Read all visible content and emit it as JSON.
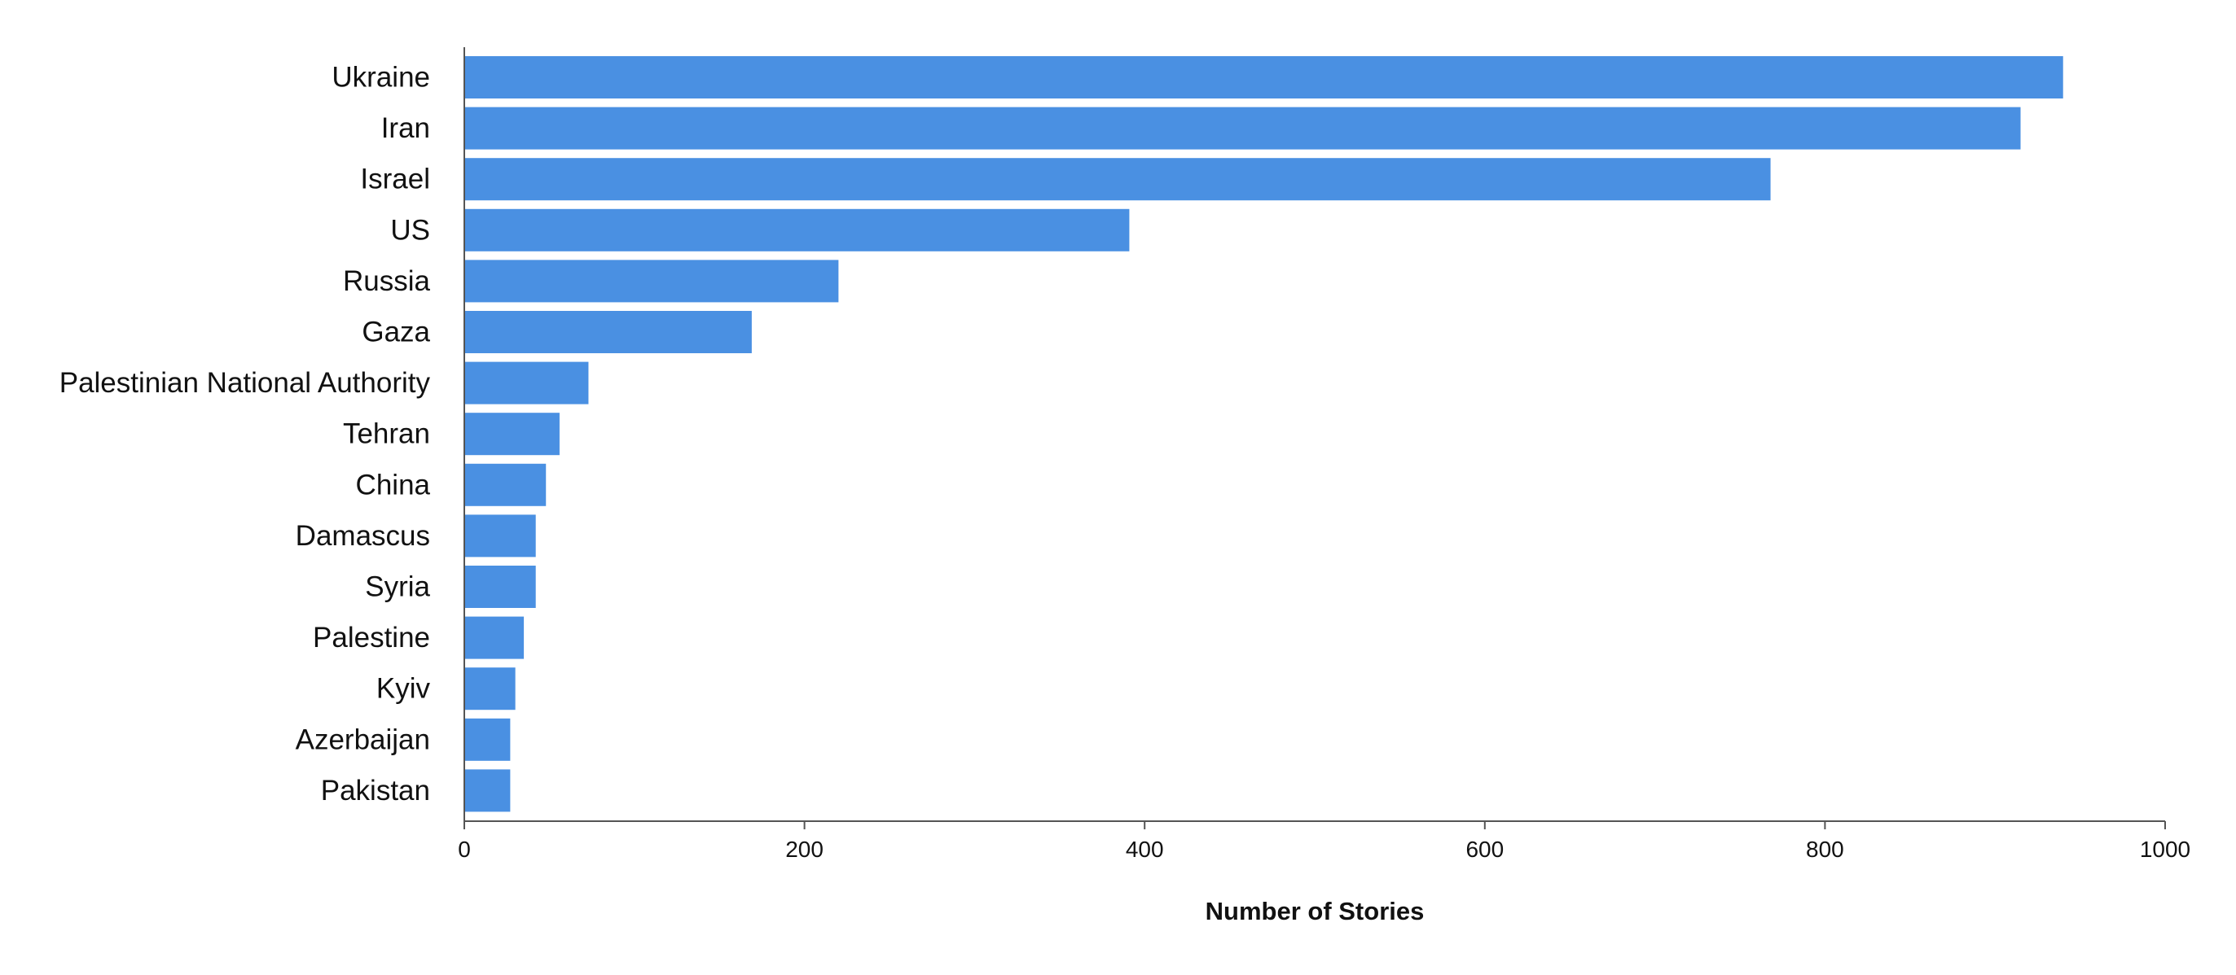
{
  "chart_data": {
    "type": "bar",
    "orientation": "horizontal",
    "categories": [
      "Ukraine",
      "Iran",
      "Israel",
      "US",
      "Russia",
      "Gaza",
      "Palestinian National Authority",
      "Tehran",
      "China",
      "Damascus",
      "Syria",
      "Palestine",
      "Kyiv",
      "Azerbaijan",
      "Pakistan"
    ],
    "values": [
      940,
      915,
      768,
      391,
      220,
      169,
      73,
      56,
      48,
      42,
      42,
      35,
      30,
      27,
      27
    ],
    "title": "",
    "xlabel": "Number of Stories",
    "ylabel": "",
    "xlim": [
      0,
      1000
    ],
    "xticks": [
      0,
      200,
      400,
      600,
      800,
      1000
    ],
    "xtick_labels": [
      "0",
      "200",
      "400",
      "600",
      "800",
      "1000"
    ],
    "grid": false,
    "legend": "none",
    "bar_color": "#4a90e2",
    "axis_color": "#555555"
  }
}
